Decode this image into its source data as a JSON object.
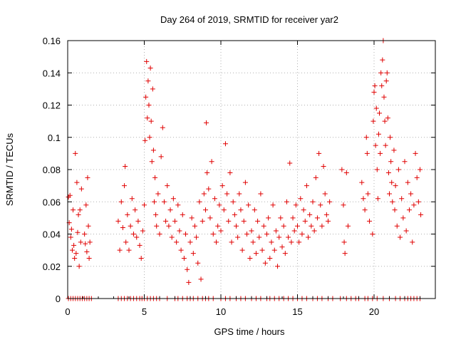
{
  "chart_data": {
    "type": "scatter",
    "title": "Day 264 of 2019, SRMTID for receiver yar2",
    "xlabel": "GPS time / hours",
    "ylabel": "SRMTID / TECUs",
    "xlim": [
      0,
      24
    ],
    "ylim": [
      0,
      0.16
    ],
    "xticks": [
      0,
      5,
      10,
      15,
      20
    ],
    "xtick_labels": [
      "0",
      "5",
      "10",
      "15",
      "20"
    ],
    "yticks": [
      0,
      0.02,
      0.04,
      0.06,
      0.08,
      0.1,
      0.12,
      0.14,
      0.16
    ],
    "ytick_labels": [
      "0",
      "0.02",
      "0.04",
      "0.06",
      "0.08",
      "0.1",
      "0.12",
      "0.14",
      "0.16"
    ],
    "grid": true,
    "marker": "plus",
    "color": "#e00000",
    "series": [
      {
        "name": "SRMTID",
        "points": [
          [
            0.05,
            0.063
          ],
          [
            0.1,
            0.047
          ],
          [
            0.15,
            0.064
          ],
          [
            0.2,
            0.038
          ],
          [
            0.25,
            0.043
          ],
          [
            0.3,
            0.03
          ],
          [
            0.35,
            0.055
          ],
          [
            0.4,
            0.033
          ],
          [
            0.45,
            0.025
          ],
          [
            0.5,
            0.09
          ],
          [
            0.55,
            0.028
          ],
          [
            0.6,
            0.072
          ],
          [
            0.65,
            0.041
          ],
          [
            0.7,
            0.052
          ],
          [
            0.75,
            0.02
          ],
          [
            0.8,
            0.055
          ],
          [
            0.85,
            0.035
          ],
          [
            0.9,
            0.068
          ],
          [
            1.1,
            0.04
          ],
          [
            1.15,
            0.034
          ],
          [
            1.2,
            0.058
          ],
          [
            1.25,
            0.029
          ],
          [
            1.3,
            0.075
          ],
          [
            1.35,
            0.045
          ],
          [
            1.4,
            0.025
          ],
          [
            1.45,
            0.035
          ],
          [
            3.3,
            0.048
          ],
          [
            3.4,
            0.03
          ],
          [
            3.5,
            0.06
          ],
          [
            3.6,
            0.044
          ],
          [
            3.7,
            0.07
          ],
          [
            3.75,
            0.082
          ],
          [
            3.8,
            0.035
          ],
          [
            3.9,
            0.052
          ],
          [
            4.0,
            0.03
          ],
          [
            4.1,
            0.045
          ],
          [
            4.2,
            0.062
          ],
          [
            4.3,
            0.04
          ],
          [
            4.4,
            0.055
          ],
          [
            4.5,
            0.038
          ],
          [
            4.6,
            0.048
          ],
          [
            4.7,
            0.033
          ],
          [
            4.8,
            0.025
          ],
          [
            4.9,
            0.042
          ],
          [
            5.0,
            0.058
          ],
          [
            5.05,
            0.098
          ],
          [
            5.1,
            0.125
          ],
          [
            5.15,
            0.147
          ],
          [
            5.2,
            0.112
          ],
          [
            5.25,
            0.135
          ],
          [
            5.3,
            0.12
          ],
          [
            5.35,
            0.1
          ],
          [
            5.4,
            0.143
          ],
          [
            5.45,
            0.11
          ],
          [
            5.5,
            0.085
          ],
          [
            5.55,
            0.13
          ],
          [
            5.6,
            0.092
          ],
          [
            5.65,
            0.06
          ],
          [
            5.7,
            0.075
          ],
          [
            5.75,
            0.052
          ],
          [
            5.8,
            0.045
          ],
          [
            5.9,
            0.065
          ],
          [
            6.0,
            0.04
          ],
          [
            6.1,
            0.088
          ],
          [
            6.2,
            0.106
          ],
          [
            6.3,
            0.06
          ],
          [
            6.4,
            0.048
          ],
          [
            6.5,
            0.07
          ],
          [
            6.6,
            0.045
          ],
          [
            6.7,
            0.055
          ],
          [
            6.8,
            0.038
          ],
          [
            6.9,
            0.062
          ],
          [
            7.0,
            0.048
          ],
          [
            7.1,
            0.035
          ],
          [
            7.2,
            0.058
          ],
          [
            7.3,
            0.042
          ],
          [
            7.4,
            0.03
          ],
          [
            7.5,
            0.052
          ],
          [
            7.6,
            0.025
          ],
          [
            7.7,
            0.04
          ],
          [
            7.8,
            0.018
          ],
          [
            7.9,
            0.01
          ],
          [
            8.0,
            0.035
          ],
          [
            8.1,
            0.05
          ],
          [
            8.2,
            0.028
          ],
          [
            8.3,
            0.045
          ],
          [
            8.4,
            0.038
          ],
          [
            8.5,
            0.022
          ],
          [
            8.6,
            0.06
          ],
          [
            8.7,
            0.012
          ],
          [
            8.8,
            0.048
          ],
          [
            8.9,
            0.065
          ],
          [
            9.0,
            0.055
          ],
          [
            9.05,
            0.109
          ],
          [
            9.1,
            0.078
          ],
          [
            9.2,
            0.068
          ],
          [
            9.3,
            0.05
          ],
          [
            9.4,
            0.085
          ],
          [
            9.5,
            0.04
          ],
          [
            9.6,
            0.062
          ],
          [
            9.7,
            0.035
          ],
          [
            9.8,
            0.045
          ],
          [
            9.9,
            0.058
          ],
          [
            10.0,
            0.042
          ],
          [
            10.1,
            0.07
          ],
          [
            10.2,
            0.055
          ],
          [
            10.3,
            0.096
          ],
          [
            10.4,
            0.065
          ],
          [
            10.5,
            0.048
          ],
          [
            10.6,
            0.078
          ],
          [
            10.7,
            0.035
          ],
          [
            10.8,
            0.06
          ],
          [
            10.9,
            0.052
          ],
          [
            11.0,
            0.045
          ],
          [
            11.1,
            0.038
          ],
          [
            11.2,
            0.065
          ],
          [
            11.3,
            0.055
          ],
          [
            11.4,
            0.03
          ],
          [
            11.5,
            0.048
          ],
          [
            11.6,
            0.072
          ],
          [
            11.7,
            0.04
          ],
          [
            11.8,
            0.058
          ],
          [
            11.9,
            0.025
          ],
          [
            12.0,
            0.042
          ],
          [
            12.1,
            0.035
          ],
          [
            12.2,
            0.055
          ],
          [
            12.3,
            0.028
          ],
          [
            12.4,
            0.048
          ],
          [
            12.5,
            0.038
          ],
          [
            12.6,
            0.065
          ],
          [
            12.7,
            0.03
          ],
          [
            12.8,
            0.045
          ],
          [
            12.9,
            0.022
          ],
          [
            13.0,
            0.04
          ],
          [
            13.1,
            0.05
          ],
          [
            13.2,
            0.025
          ],
          [
            13.3,
            0.035
          ],
          [
            13.4,
            0.058
          ],
          [
            13.5,
            0.03
          ],
          [
            13.6,
            0.042
          ],
          [
            13.7,
            0.02
          ],
          [
            13.8,
            0.038
          ],
          [
            13.9,
            0.05
          ],
          [
            14.0,
            0.032
          ],
          [
            14.1,
            0.045
          ],
          [
            14.2,
            0.028
          ],
          [
            14.3,
            0.06
          ],
          [
            14.4,
            0.038
          ],
          [
            14.5,
            0.084
          ],
          [
            14.6,
            0.035
          ],
          [
            14.7,
            0.05
          ],
          [
            14.8,
            0.042
          ],
          [
            14.9,
            0.058
          ],
          [
            15.0,
            0.045
          ],
          [
            15.1,
            0.035
          ],
          [
            15.2,
            0.062
          ],
          [
            15.3,
            0.04
          ],
          [
            15.4,
            0.055
          ],
          [
            15.5,
            0.048
          ],
          [
            15.6,
            0.07
          ],
          [
            15.7,
            0.038
          ],
          [
            15.8,
            0.052
          ],
          [
            15.9,
            0.045
          ],
          [
            16.0,
            0.06
          ],
          [
            16.1,
            0.042
          ],
          [
            16.2,
            0.075
          ],
          [
            16.3,
            0.05
          ],
          [
            16.4,
            0.09
          ],
          [
            16.5,
            0.058
          ],
          [
            16.6,
            0.045
          ],
          [
            16.7,
            0.082
          ],
          [
            16.8,
            0.065
          ],
          [
            16.9,
            0.052
          ],
          [
            17.0,
            0.048
          ],
          [
            17.1,
            0.06
          ],
          [
            17.9,
            0.08
          ],
          [
            18.0,
            0.058
          ],
          [
            18.05,
            0.035
          ],
          [
            18.1,
            0.028
          ],
          [
            18.2,
            0.078
          ],
          [
            18.3,
            0.045
          ],
          [
            19.2,
            0.072
          ],
          [
            19.3,
            0.062
          ],
          [
            19.4,
            0.055
          ],
          [
            19.5,
            0.1
          ],
          [
            19.55,
            0.09
          ],
          [
            19.6,
            0.065
          ],
          [
            19.7,
            0.048
          ],
          [
            19.9,
            0.04
          ],
          [
            19.95,
            0.11
          ],
          [
            20.0,
            0.128
          ],
          [
            20.05,
            0.132
          ],
          [
            20.1,
            0.095
          ],
          [
            20.15,
            0.118
          ],
          [
            20.2,
            0.08
          ],
          [
            20.25,
            0.062
          ],
          [
            20.3,
            0.102
          ],
          [
            20.35,
            0.115
          ],
          [
            20.4,
            0.09
          ],
          [
            20.45,
            0.14
          ],
          [
            20.5,
            0.132
          ],
          [
            20.55,
            0.148
          ],
          [
            20.6,
            0.16
          ],
          [
            20.65,
            0.125
          ],
          [
            20.7,
            0.11
          ],
          [
            20.75,
            0.095
          ],
          [
            20.8,
            0.135
          ],
          [
            20.85,
            0.14
          ],
          [
            20.9,
            0.112
          ],
          [
            20.95,
            0.078
          ],
          [
            21.0,
            0.065
          ],
          [
            21.05,
            0.1
          ],
          [
            21.1,
            0.085
          ],
          [
            21.15,
            0.072
          ],
          [
            21.2,
            0.06
          ],
          [
            21.3,
            0.092
          ],
          [
            21.35,
            0.055
          ],
          [
            21.4,
            0.07
          ],
          [
            21.5,
            0.045
          ],
          [
            21.6,
            0.08
          ],
          [
            21.7,
            0.038
          ],
          [
            21.8,
            0.062
          ],
          [
            21.9,
            0.05
          ],
          [
            22.0,
            0.085
          ],
          [
            22.1,
            0.042
          ],
          [
            22.2,
            0.072
          ],
          [
            22.3,
            0.055
          ],
          [
            22.4,
            0.065
          ],
          [
            22.5,
            0.035
          ],
          [
            22.6,
            0.058
          ],
          [
            22.7,
            0.09
          ],
          [
            22.8,
            0.075
          ],
          [
            22.9,
            0.06
          ],
          [
            23.0,
            0.08
          ],
          [
            23.05,
            0.052
          ]
        ]
      }
    ],
    "zero_line_points_x": [
      0.05,
      0.2,
      0.35,
      0.5,
      0.65,
      0.8,
      0.95,
      1.1,
      1.25,
      1.4,
      1.55,
      3.3,
      3.5,
      3.7,
      3.9,
      4.1,
      4.3,
      4.5,
      4.7,
      4.85,
      5.0,
      5.2,
      5.4,
      5.6,
      5.8,
      6.0,
      6.5,
      7.0,
      7.2,
      7.5,
      7.8,
      8.0,
      8.2,
      8.5,
      8.8,
      9.0,
      9.2,
      9.5,
      10.0,
      10.3,
      10.6,
      11.0,
      11.3,
      11.6,
      12.0,
      12.3,
      12.6,
      13.0,
      13.2,
      13.5,
      13.8,
      14.1,
      14.4,
      14.7,
      15.0,
      15.3,
      15.6,
      16.0,
      16.3,
      16.6,
      17.0,
      17.3,
      17.8,
      18.2,
      18.5,
      18.8,
      19.0,
      19.4,
      19.6,
      19.9,
      20.2,
      20.6,
      21.0,
      21.4,
      21.7,
      22.0,
      22.2,
      22.4,
      22.6,
      22.8,
      23.0
    ]
  }
}
